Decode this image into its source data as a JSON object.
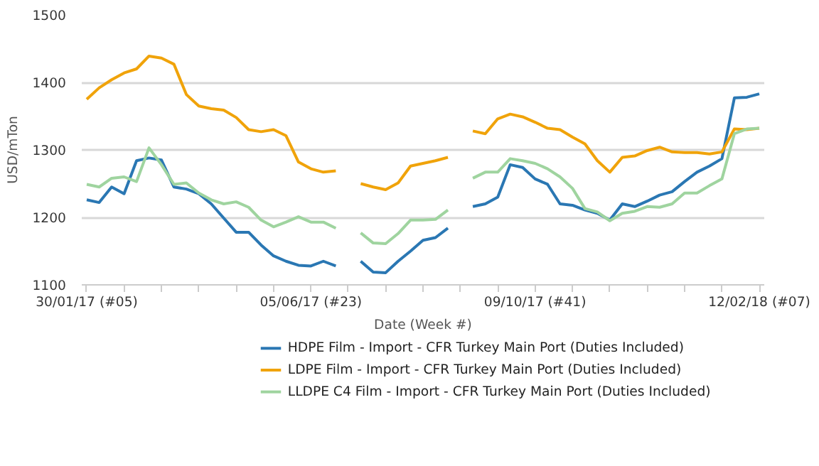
{
  "chart_data": {
    "type": "line",
    "ylabel": "USD/mTon",
    "xlabel": "Date (Week #)",
    "x": [
      "2017-01-30",
      "2017-02-06",
      "2017-02-13",
      "2017-02-20",
      "2017-02-27",
      "2017-03-06",
      "2017-03-13",
      "2017-03-20",
      "2017-03-27",
      "2017-04-03",
      "2017-04-10",
      "2017-04-17",
      "2017-04-24",
      "2017-05-01",
      "2017-05-08",
      "2017-05-15",
      "2017-05-22",
      "2017-05-29",
      "2017-06-05",
      "2017-06-12",
      "2017-06-19",
      "2017-06-26",
      "2017-07-03",
      "2017-07-10",
      "2017-07-17",
      "2017-07-24",
      "2017-07-31",
      "2017-08-07",
      "2017-08-14",
      "2017-08-21",
      "2017-08-28",
      "2017-09-04",
      "2017-09-11",
      "2017-09-18",
      "2017-09-25",
      "2017-10-02",
      "2017-10-09",
      "2017-10-16",
      "2017-10-23",
      "2017-10-30",
      "2017-11-06",
      "2017-11-13",
      "2017-11-20",
      "2017-11-27",
      "2017-12-04",
      "2017-12-11",
      "2017-12-18",
      "2017-12-25",
      "2018-01-01",
      "2018-01-08",
      "2018-01-15",
      "2018-01-22",
      "2018-01-29",
      "2018-02-05",
      "2018-02-12"
    ],
    "series": [
      {
        "name": "HDPE Film - Import - CFR Turkey Main Port (Duties Included)",
        "color": "#2a77b3",
        "values": [
          1226,
          1222,
          1245,
          1235,
          1284,
          1288,
          1285,
          1245,
          1242,
          1235,
          1220,
          1199,
          1178,
          1178,
          1159,
          1143,
          1135,
          1129,
          1128,
          1135,
          1128,
          null,
          1135,
          1119,
          1118,
          1135,
          1150,
          1166,
          1170,
          1184,
          null,
          1216,
          1220,
          1230,
          1278,
          1274,
          1257,
          1249,
          1220,
          1218,
          1211,
          1206,
          1196,
          1220,
          1216,
          1224,
          1233,
          1238,
          1253,
          1267,
          1276,
          1287,
          1377,
          1378,
          1383
        ]
      },
      {
        "name": "LDPE Film - Import - CFR Turkey Main Port (Duties Included)",
        "color": "#f0a30a",
        "values": [
          1375,
          1392,
          1404,
          1414,
          1420,
          1439,
          1436,
          1427,
          1382,
          1365,
          1361,
          1359,
          1348,
          1330,
          1327,
          1330,
          1321,
          1282,
          1272,
          1267,
          1269,
          null,
          1250,
          1245,
          1241,
          1251,
          1276,
          1280,
          1284,
          1289,
          null,
          1328,
          1324,
          1346,
          1353,
          1349,
          1341,
          1332,
          1330,
          1319,
          1309,
          1284,
          1267,
          1289,
          1291,
          1299,
          1304,
          1297,
          1296,
          1296,
          1294,
          1297,
          1331,
          1330,
          1332
        ]
      },
      {
        "name": "LLDPE C4 Film - Import - CFR Turkey Main Port (Duties Included)",
        "color": "#9fd49f",
        "values": [
          1249,
          1245,
          1258,
          1260,
          1253,
          1303,
          1278,
          1249,
          1251,
          1236,
          1226,
          1220,
          1223,
          1215,
          1196,
          1186,
          1193,
          1201,
          1193,
          1193,
          1184,
          null,
          1177,
          1162,
          1161,
          1176,
          1196,
          1196,
          1197,
          1211,
          null,
          1258,
          1267,
          1267,
          1287,
          1284,
          1280,
          1272,
          1260,
          1243,
          1213,
          1208,
          1195,
          1206,
          1209,
          1216,
          1215,
          1220,
          1236,
          1236,
          1247,
          1257,
          1324,
          1331,
          1332
        ]
      }
    ],
    "xlim": [
      "2017-01-27T05:00",
      "2018-02-14T19:00"
    ],
    "xticks": [
      {
        "value": "2017-01-30",
        "label": "30/01/17 (#05)"
      },
      {
        "value": "2017-02-20",
        "label": null
      },
      {
        "value": "2017-03-13",
        "label": null
      },
      {
        "value": "2017-04-03",
        "label": null
      },
      {
        "value": "2017-04-24",
        "label": null
      },
      {
        "value": "2017-05-15",
        "label": null
      },
      {
        "value": "2017-06-05",
        "label": "05/06/17 (#23)"
      },
      {
        "value": "2017-06-26",
        "label": null
      },
      {
        "value": "2017-07-17",
        "label": null
      },
      {
        "value": "2017-08-07",
        "label": null
      },
      {
        "value": "2017-08-28",
        "label": null
      },
      {
        "value": "2017-09-18",
        "label": null
      },
      {
        "value": "2017-10-09",
        "label": "09/10/17 (#41)"
      },
      {
        "value": "2017-10-30",
        "label": null
      },
      {
        "value": "2017-11-20",
        "label": null
      },
      {
        "value": "2017-12-11",
        "label": null
      },
      {
        "value": "2018-01-01",
        "label": null
      },
      {
        "value": "2018-01-22",
        "label": null
      },
      {
        "value": "2018-02-12",
        "label": "12/02/18 (#07)"
      }
    ],
    "ylim": [
      1100,
      1500
    ],
    "yticks": [
      1100,
      1200,
      1300,
      1400,
      1500
    ],
    "grid": "y",
    "legend": "bottom",
    "marker": "none",
    "line_style": "solid"
  }
}
